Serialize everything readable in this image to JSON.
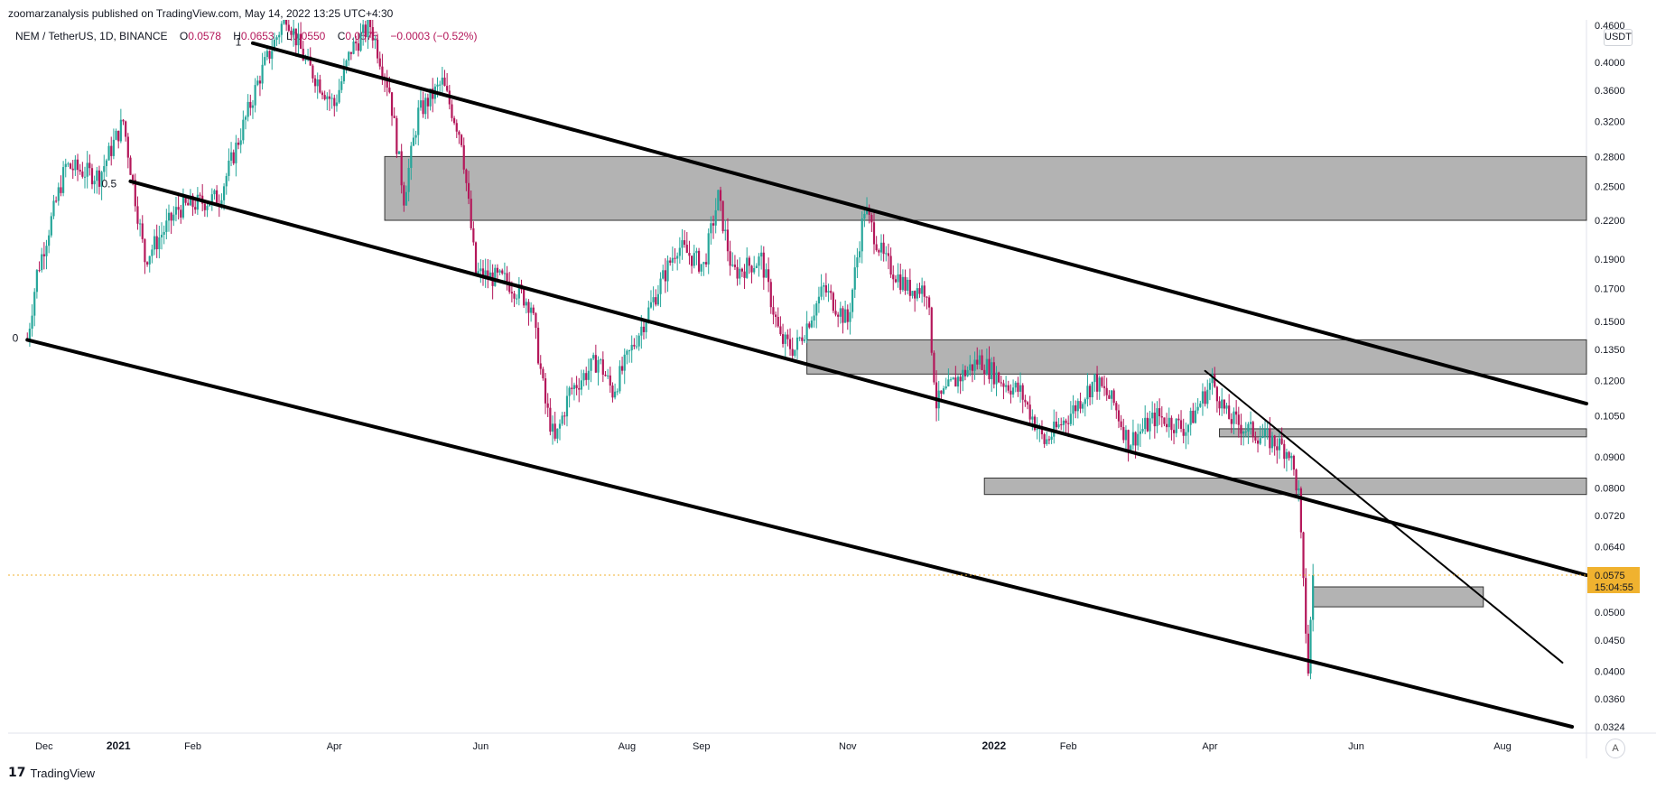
{
  "header": {
    "publisher_line": "zoomarzanalysis published on TradingView.com, May 14, 2022 13:25 UTC+4:30"
  },
  "legend": {
    "symbol": "NEM / TetherUS, 1D, BINANCE",
    "open_label": "O",
    "open": "0.0578",
    "high_label": "H",
    "high": "0.0653",
    "low_label": "L",
    "low": "0.0550",
    "close_label": "C",
    "close": "0.0575",
    "change": "−0.0003 (−0.52%)"
  },
  "currency_badge": "USDT",
  "footer": {
    "logo": "17",
    "brand": "TradingView"
  },
  "auto_button": "A",
  "price_tag": {
    "value": "0.0575",
    "countdown": "15:04:55",
    "color": "#f0b22f"
  },
  "colors": {
    "up": "#26a69a",
    "down": "#b4175a",
    "zone_fill": "#b3b3b3",
    "line": "#000000",
    "price_line": "#f0b22f"
  },
  "chart_data": {
    "type": "candlestick",
    "scale": "log",
    "y_ticks": [
      "0.4600",
      "0.4000",
      "0.3600",
      "0.3200",
      "0.2800",
      "0.2500",
      "0.2200",
      "0.1900",
      "0.1700",
      "0.1500",
      "0.1350",
      "0.1200",
      "0.1050",
      "0.0900",
      "0.0800",
      "0.0720",
      "0.0640",
      "0.0575",
      "0.0500",
      "0.0450",
      "0.0400",
      "0.0360",
      "0.0324"
    ],
    "x_ticks": [
      "Dec",
      "2021",
      "Feb",
      "Apr",
      "Jun",
      "Aug",
      "Sep",
      "Nov",
      "2022",
      "Feb",
      "Apr",
      "Jun",
      "Aug"
    ],
    "x_range": [
      "2020-11-16",
      "2022-09-05"
    ],
    "price_series": [
      [
        "2020-11-24",
        0.14
      ],
      [
        "2020-11-28",
        0.18
      ],
      [
        "2020-12-10",
        0.27
      ],
      [
        "2020-12-24",
        0.26
      ],
      [
        "2021-01-03",
        0.32
      ],
      [
        "2021-01-12",
        0.19
      ],
      [
        "2021-01-26",
        0.23
      ],
      [
        "2021-02-12",
        0.24
      ],
      [
        "2021-03-01",
        0.38
      ],
      [
        "2021-03-12",
        0.48
      ],
      [
        "2021-03-20",
        0.4
      ],
      [
        "2021-04-01",
        0.34
      ],
      [
        "2021-04-08",
        0.42
      ],
      [
        "2021-04-16",
        0.46
      ],
      [
        "2021-04-24",
        0.36
      ],
      [
        "2021-04-30",
        0.24
      ],
      [
        "2021-05-06",
        0.33
      ],
      [
        "2021-05-16",
        0.37
      ],
      [
        "2021-05-24",
        0.3
      ],
      [
        "2021-05-30",
        0.18
      ],
      [
        "2021-06-12",
        0.175
      ],
      [
        "2021-06-22",
        0.16
      ],
      [
        "2021-06-28",
        0.11
      ],
      [
        "2021-07-02",
        0.095
      ],
      [
        "2021-07-08",
        0.115
      ],
      [
        "2021-07-20",
        0.13
      ],
      [
        "2021-07-26",
        0.115
      ],
      [
        "2021-08-08",
        0.15
      ],
      [
        "2021-08-22",
        0.2
      ],
      [
        "2021-09-02",
        0.185
      ],
      [
        "2021-09-08",
        0.24
      ],
      [
        "2021-09-14",
        0.18
      ],
      [
        "2021-09-26",
        0.19
      ],
      [
        "2021-10-04",
        0.14
      ],
      [
        "2021-10-10",
        0.135
      ],
      [
        "2021-10-22",
        0.17
      ],
      [
        "2021-11-01",
        0.15
      ],
      [
        "2021-11-08",
        0.23
      ],
      [
        "2021-11-16",
        0.19
      ],
      [
        "2021-11-26",
        0.17
      ],
      [
        "2021-12-04",
        0.17
      ],
      [
        "2021-12-08",
        0.11
      ],
      [
        "2021-12-16",
        0.12
      ],
      [
        "2021-12-26",
        0.13
      ],
      [
        "2022-01-04",
        0.12
      ],
      [
        "2022-01-12",
        0.115
      ],
      [
        "2022-01-22",
        0.095
      ],
      [
        "2022-02-01",
        0.105
      ],
      [
        "2022-02-12",
        0.12
      ],
      [
        "2022-02-20",
        0.11
      ],
      [
        "2022-02-26",
        0.095
      ],
      [
        "2022-03-10",
        0.105
      ],
      [
        "2022-03-22",
        0.1
      ],
      [
        "2022-04-02",
        0.12
      ],
      [
        "2022-04-08",
        0.105
      ],
      [
        "2022-04-16",
        0.1
      ],
      [
        "2022-04-28",
        0.095
      ],
      [
        "2022-05-04",
        0.092
      ],
      [
        "2022-05-08",
        0.078
      ],
      [
        "2022-05-10",
        0.055
      ],
      [
        "2022-05-12",
        0.04
      ],
      [
        "2022-05-14",
        0.0575
      ]
    ],
    "last_price": 0.0575,
    "zones": [
      {
        "start": "2021-04-22",
        "end": "2022-09-05",
        "low": 0.22,
        "high": 0.28
      },
      {
        "start": "2021-10-15",
        "end": "2022-09-05",
        "low": 0.123,
        "high": 0.14
      },
      {
        "start": "2022-04-05",
        "end": "2022-09-05",
        "low": 0.097,
        "high": 0.1
      },
      {
        "start": "2021-12-28",
        "end": "2022-09-05",
        "low": 0.078,
        "high": 0.083
      },
      {
        "start": "2022-05-14",
        "end": "2022-07-24",
        "low": 0.051,
        "high": 0.055
      }
    ],
    "trend_lines": [
      {
        "x1": "2021-02-26",
        "y1": 0.43,
        "x2": "2022-09-05",
        "y2": 0.11,
        "width": 4
      },
      {
        "x1": "2021-01-06",
        "y1": 0.255,
        "x2": "2022-09-05",
        "y2": 0.0575,
        "width": 4
      },
      {
        "x1": "2020-11-24",
        "y1": 0.14,
        "x2": "2022-08-30",
        "y2": 0.0324,
        "width": 4
      },
      {
        "x1": "2022-03-30",
        "y1": 0.1245,
        "x2": "2022-08-26",
        "y2": 0.0413,
        "width": 2
      }
    ],
    "fib_labels": [
      {
        "text": "0",
        "date": "2020-11-21",
        "price": 0.141
      },
      {
        "text": "0.5",
        "date": "2021-01-01",
        "price": 0.2525
      },
      {
        "text": "1",
        "date": "2021-02-22",
        "price": 0.432
      }
    ]
  }
}
